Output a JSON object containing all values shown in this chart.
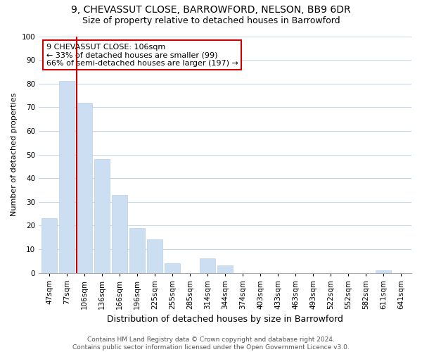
{
  "title1": "9, CHEVASSUT CLOSE, BARROWFORD, NELSON, BB9 6DR",
  "title2": "Size of property relative to detached houses in Barrowford",
  "xlabel": "Distribution of detached houses by size in Barrowford",
  "ylabel": "Number of detached properties",
  "bar_labels": [
    "47sqm",
    "77sqm",
    "106sqm",
    "136sqm",
    "166sqm",
    "196sqm",
    "225sqm",
    "255sqm",
    "285sqm",
    "314sqm",
    "344sqm",
    "374sqm",
    "403sqm",
    "433sqm",
    "463sqm",
    "493sqm",
    "522sqm",
    "552sqm",
    "582sqm",
    "611sqm",
    "641sqm"
  ],
  "bar_values": [
    23,
    81,
    72,
    48,
    33,
    19,
    14,
    4,
    0,
    6,
    3,
    0,
    0,
    0,
    0,
    0,
    0,
    0,
    0,
    1,
    0
  ],
  "bar_color": "#ccdff2",
  "bar_edge_color": "#b8cfe8",
  "highlight_index": 2,
  "highlight_line_color": "#cc0000",
  "ylim": [
    0,
    100
  ],
  "annotation_title": "9 CHEVASSUT CLOSE: 106sqm",
  "annotation_line1": "← 33% of detached houses are smaller (99)",
  "annotation_line2": "66% of semi-detached houses are larger (197) →",
  "annotation_box_color": "#ffffff",
  "annotation_box_edge_color": "#cc0000",
  "footer1": "Contains HM Land Registry data © Crown copyright and database right 2024.",
  "footer2": "Contains public sector information licensed under the Open Government Licence v3.0.",
  "bg_color": "#ffffff",
  "grid_color": "#c8d8e8",
  "title1_fontsize": 10,
  "title2_fontsize": 9,
  "xlabel_fontsize": 9,
  "ylabel_fontsize": 8,
  "tick_fontsize": 7.5,
  "annotation_fontsize": 8,
  "footer_fontsize": 6.5
}
